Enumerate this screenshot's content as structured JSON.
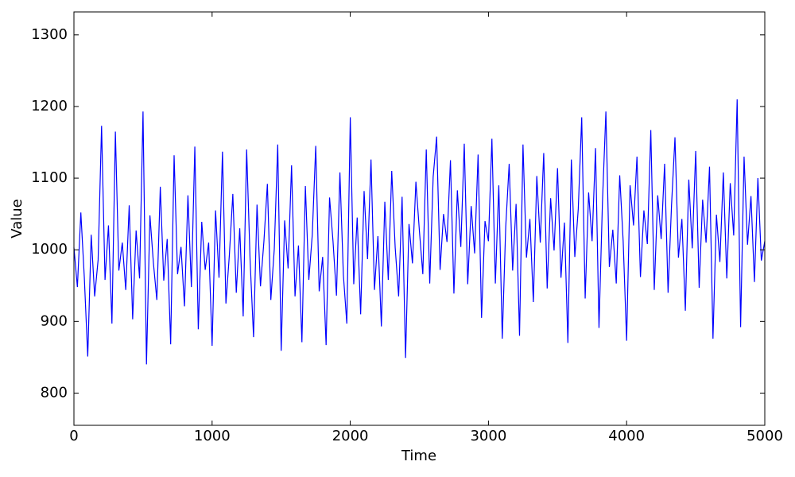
{
  "chart_data": {
    "type": "line",
    "x_label": "Time",
    "y_label": "Value",
    "color": "#0000ff",
    "x": [
      0,
      25,
      50,
      75,
      100,
      125,
      150,
      175,
      200,
      225,
      250,
      275,
      300,
      325,
      350,
      375,
      400,
      425,
      450,
      475,
      500,
      525,
      550,
      575,
      600,
      625,
      650,
      675,
      700,
      725,
      750,
      775,
      800,
      825,
      850,
      875,
      900,
      925,
      950,
      975,
      1000,
      1025,
      1050,
      1075,
      1100,
      1125,
      1150,
      1175,
      1200,
      1225,
      1250,
      1275,
      1300,
      1325,
      1350,
      1375,
      1400,
      1425,
      1450,
      1475,
      1500,
      1525,
      1550,
      1575,
      1600,
      1625,
      1650,
      1675,
      1700,
      1725,
      1750,
      1775,
      1800,
      1825,
      1850,
      1875,
      1900,
      1925,
      1950,
      1975,
      2000,
      2025,
      2050,
      2075,
      2100,
      2125,
      2150,
      2175,
      2200,
      2225,
      2250,
      2275,
      2300,
      2325,
      2350,
      2375,
      2400,
      2425,
      2450,
      2475,
      2500,
      2525,
      2550,
      2575,
      2600,
      2625,
      2650,
      2675,
      2700,
      2725,
      2750,
      2775,
      2800,
      2825,
      2850,
      2875,
      2900,
      2925,
      2950,
      2975,
      3000,
      3025,
      3050,
      3075,
      3100,
      3125,
      3150,
      3175,
      3200,
      3225,
      3250,
      3275,
      3300,
      3325,
      3350,
      3375,
      3400,
      3425,
      3450,
      3475,
      3500,
      3525,
      3550,
      3575,
      3600,
      3625,
      3650,
      3675,
      3700,
      3725,
      3750,
      3775,
      3800,
      3825,
      3850,
      3875,
      3900,
      3925,
      3950,
      3975,
      4000,
      4025,
      4050,
      4075,
      4100,
      4125,
      4150,
      4175,
      4200,
      4225,
      4250,
      4275,
      4300,
      4325,
      4350,
      4375,
      4400,
      4425,
      4450,
      4475,
      4500,
      4525,
      4550,
      4575,
      4600,
      4625,
      4650,
      4675,
      4700,
      4725,
      4750,
      4775,
      4800,
      4825,
      4850,
      4875,
      4900,
      4925,
      4950,
      4975,
      5000
    ],
    "values": [
      1003,
      948,
      1052,
      962,
      851,
      1021,
      935,
      986,
      1173,
      958,
      1034,
      897,
      1165,
      971,
      1010,
      944,
      1062,
      903,
      1027,
      960,
      1193,
      840,
      1048,
      982,
      930,
      1088,
      957,
      1015,
      868,
      1132,
      966,
      1004,
      921,
      1076,
      948,
      1144,
      889,
      1039,
      972,
      1010,
      866,
      1055,
      961,
      1137,
      925,
      993,
      1078,
      940,
      1030,
      907,
      1140,
      985,
      878,
      1063,
      949,
      1012,
      1092,
      930,
      1001,
      1147,
      859,
      1041,
      974,
      1118,
      935,
      1006,
      871,
      1089,
      958,
      1021,
      1145,
      942,
      990,
      867,
      1073,
      1012,
      936,
      1108,
      965,
      897,
      1185,
      952,
      1045,
      910,
      1082,
      987,
      1126,
      944,
      1019,
      893,
      1067,
      958,
      1110,
      1003,
      935,
      1074,
      849,
      1036,
      981,
      1095,
      1027,
      966,
      1140,
      953,
      1102,
      1158,
      972,
      1050,
      1011,
      1125,
      939,
      1083,
      1004,
      1148,
      952,
      1061,
      995,
      1133,
      905,
      1040,
      1012,
      1155,
      953,
      1090,
      876,
      1032,
      1120,
      971,
      1064,
      880,
      1147,
      989,
      1043,
      927,
      1103,
      1010,
      1135,
      946,
      1072,
      999,
      1114,
      961,
      1038,
      870,
      1126,
      990,
      1057,
      1185,
      932,
      1080,
      1012,
      1142,
      891,
      1066,
      1193,
      976,
      1028,
      953,
      1104,
      1012,
      873,
      1090,
      1034,
      1130,
      962,
      1055,
      1008,
      1167,
      944,
      1076,
      1015,
      1120,
      940,
      1062,
      1157,
      989,
      1043,
      915,
      1098,
      1002,
      1138,
      947,
      1070,
      1010,
      1116,
      876,
      1049,
      983,
      1108,
      960,
      1093,
      1020,
      1210,
      892,
      1130,
      1007,
      1075,
      955,
      1100,
      985,
      1012
    ],
    "xlim": [
      0,
      5000
    ],
    "xticks": [
      0,
      1000,
      2000,
      3000,
      4000,
      5000
    ],
    "ylim": [
      755,
      1332
    ],
    "yticks": [
      800,
      900,
      1000,
      1100,
      1200,
      1300
    ]
  }
}
